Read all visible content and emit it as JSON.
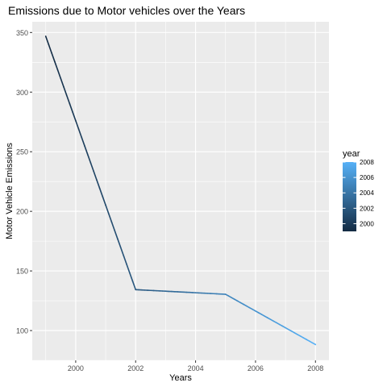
{
  "chart_data": {
    "type": "line",
    "title": "Emissions due to Motor vehicles over the Years",
    "xlabel": "Years",
    "ylabel": "Motor Vehicle Emissions",
    "x": [
      1999,
      2002,
      2005,
      2008
    ],
    "values": [
      346.82,
      134.31,
      130.43,
      88.28
    ],
    "xlim": [
      1998.55,
      2008.45
    ],
    "ylim": [
      75,
      359
    ],
    "x_ticks": [
      2000,
      2002,
      2004,
      2006,
      2008
    ],
    "y_ticks": [
      100,
      150,
      200,
      250,
      300,
      350
    ],
    "grid": true,
    "color_scale": {
      "title": "year",
      "ticks": [
        2000,
        2002,
        2004,
        2006,
        2008
      ],
      "range": [
        1999,
        2008
      ],
      "low_color": "#132B43",
      "high_color": "#56B1F7"
    },
    "legend_position": "right"
  }
}
